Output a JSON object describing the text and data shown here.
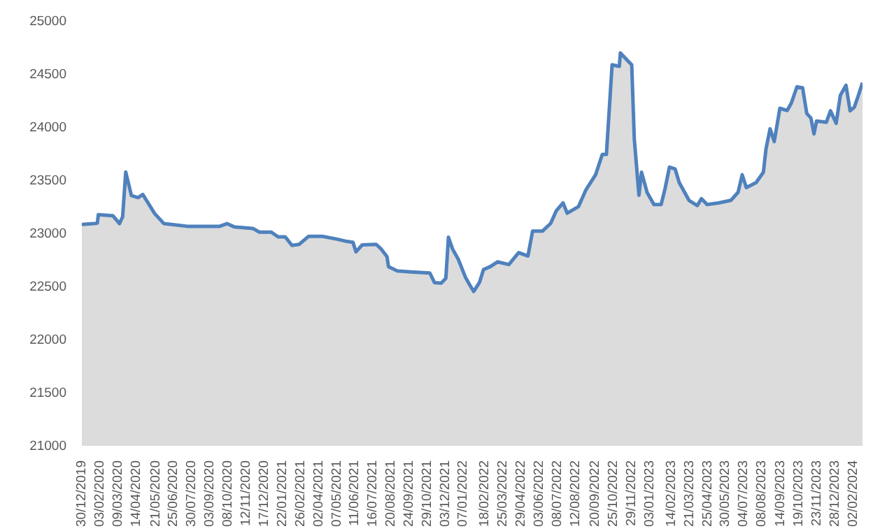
{
  "chart_data": {
    "type": "area",
    "ylim": [
      21000,
      25000
    ],
    "yticks": [
      21000,
      21500,
      22000,
      22500,
      23000,
      23500,
      24000,
      24500,
      25000
    ],
    "xlim": [
      "2019-12-30",
      "2024-02-19"
    ],
    "xticks": [
      {
        "value": "2019-12-30",
        "label": "30/12/2019"
      },
      {
        "value": "2020-02-03",
        "label": "03/02/2020"
      },
      {
        "value": "2020-03-09",
        "label": "09/03/2020"
      },
      {
        "value": "2020-04-14",
        "label": "14/04/2020"
      },
      {
        "value": "2020-05-21",
        "label": "21/05/2020"
      },
      {
        "value": "2020-06-25",
        "label": "25/06/2020"
      },
      {
        "value": "2020-07-30",
        "label": "30/07/2020"
      },
      {
        "value": "2020-09-03",
        "label": "03/09/2020"
      },
      {
        "value": "2020-10-08",
        "label": "08/10/2020"
      },
      {
        "value": "2020-11-12",
        "label": "12/11/2020"
      },
      {
        "value": "2020-12-17",
        "label": "17/12/2020"
      },
      {
        "value": "2021-01-22",
        "label": "22/01/2021"
      },
      {
        "value": "2021-02-26",
        "label": "26/02/2021"
      },
      {
        "value": "2021-04-02",
        "label": "02/04/2021"
      },
      {
        "value": "2021-05-07",
        "label": "07/05/2021"
      },
      {
        "value": "2021-06-11",
        "label": "11/06/2021"
      },
      {
        "value": "2021-07-16",
        "label": "16/07/2021"
      },
      {
        "value": "2021-08-20",
        "label": "20/08/2021"
      },
      {
        "value": "2021-09-24",
        "label": "24/09/2021"
      },
      {
        "value": "2021-10-29",
        "label": "29/10/2021"
      },
      {
        "value": "2021-12-03",
        "label": "03/12/2021"
      },
      {
        "value": "2022-01-07",
        "label": "07/01/2022"
      },
      {
        "value": "2022-02-18",
        "label": "18/02/2022"
      },
      {
        "value": "2022-03-25",
        "label": "25/03/2022"
      },
      {
        "value": "2022-04-29",
        "label": "29/04/2022"
      },
      {
        "value": "2022-06-03",
        "label": "03/06/2022"
      },
      {
        "value": "2022-07-08",
        "label": "08/07/2022"
      },
      {
        "value": "2022-08-12",
        "label": "12/08/2022"
      },
      {
        "value": "2022-09-20",
        "label": "20/09/2022"
      },
      {
        "value": "2022-10-25",
        "label": "25/10/2022"
      },
      {
        "value": "2022-11-29",
        "label": "29/11/2022"
      },
      {
        "value": "2023-01-03",
        "label": "03/01/2023"
      },
      {
        "value": "2023-02-14",
        "label": "14/02/2023"
      },
      {
        "value": "2023-03-21",
        "label": "21/03/2023"
      },
      {
        "value": "2023-04-25",
        "label": "25/04/2023"
      },
      {
        "value": "2023-05-30",
        "label": "30/05/2023"
      },
      {
        "value": "2023-07-04",
        "label": "04/07/2023"
      },
      {
        "value": "2023-08-08",
        "label": "08/08/2023"
      },
      {
        "value": "2023-09-14",
        "label": "14/09/2023"
      },
      {
        "value": "2023-10-19",
        "label": "19/10/2023"
      },
      {
        "value": "2023-11-23",
        "label": "23/11/2023"
      },
      {
        "value": "2023-12-28",
        "label": "28/12/2023"
      },
      {
        "value": "2024-02-02",
        "label": "02/02/2024"
      }
    ],
    "grid": false,
    "x": [
      "2019-12-30",
      "2020-01-22",
      "2020-01-29",
      "2020-01-31",
      "2020-02-28",
      "2020-03-12",
      "2020-03-18",
      "2020-03-24",
      "2020-04-04",
      "2020-04-17",
      "2020-04-26",
      "2020-05-19",
      "2020-06-06",
      "2020-07-21",
      "2020-09-22",
      "2020-10-06",
      "2020-10-20",
      "2020-11-25",
      "2020-12-08",
      "2020-12-31",
      "2021-01-13",
      "2021-01-27",
      "2021-02-09",
      "2021-02-23",
      "2021-03-13",
      "2021-04-09",
      "2021-05-06",
      "2021-05-24",
      "2021-06-07",
      "2021-06-13",
      "2021-06-25",
      "2021-07-22",
      "2021-07-31",
      "2021-08-12",
      "2021-08-15",
      "2021-09-01",
      "2021-09-28",
      "2021-11-03",
      "2021-11-12",
      "2021-11-25",
      "2021-12-04",
      "2021-12-09",
      "2021-12-17",
      "2021-12-28",
      "2022-01-11",
      "2022-01-19",
      "2022-01-27",
      "2022-02-07",
      "2022-02-15",
      "2022-02-28",
      "2022-03-14",
      "2022-04-05",
      "2022-04-24",
      "2022-05-12",
      "2022-05-21",
      "2022-06-09",
      "2022-06-25",
      "2022-07-06",
      "2022-07-19",
      "2022-07-27",
      "2022-08-18",
      "2022-09-01",
      "2022-09-20",
      "2022-10-03",
      "2022-10-11",
      "2022-10-22",
      "2022-11-05",
      "2022-11-07",
      "2022-11-21",
      "2022-11-29",
      "2022-12-04",
      "2022-12-13",
      "2022-12-18",
      "2022-12-29",
      "2023-01-11",
      "2023-01-25",
      "2023-02-02",
      "2023-02-10",
      "2023-02-21",
      "2023-03-01",
      "2023-03-20",
      "2023-04-05",
      "2023-04-13",
      "2023-04-24",
      "2023-05-16",
      "2023-06-09",
      "2023-06-23",
      "2023-07-01",
      "2023-07-09",
      "2023-07-28",
      "2023-08-11",
      "2023-08-16",
      "2023-08-24",
      "2023-09-01",
      "2023-09-12",
      "2023-09-26",
      "2023-10-04",
      "2023-10-15",
      "2023-10-26",
      "2023-11-03",
      "2023-11-11",
      "2023-11-17",
      "2023-11-22",
      "2023-12-11",
      "2023-12-19",
      "2023-12-30",
      "2024-01-07",
      "2024-01-18",
      "2024-01-26",
      "2024-02-03",
      "2024-02-11",
      "2024-02-19"
    ],
    "series": [
      {
        "color": "#4f81bd",
        "values": [
          23077,
          23085,
          23090,
          23170,
          23160,
          23085,
          23150,
          23570,
          23350,
          23330,
          23360,
          23180,
          23085,
          23060,
          23060,
          23085,
          23055,
          23040,
          23005,
          23005,
          22960,
          22960,
          22880,
          22890,
          22965,
          22965,
          22940,
          22920,
          22910,
          22820,
          22885,
          22890,
          22850,
          22775,
          22680,
          22640,
          22630,
          22620,
          22530,
          22525,
          22570,
          22957,
          22846,
          22750,
          22580,
          22510,
          22446,
          22530,
          22653,
          22680,
          22725,
          22700,
          22812,
          22780,
          23014,
          23014,
          23087,
          23207,
          23280,
          23183,
          23246,
          23400,
          23545,
          23737,
          23737,
          24581,
          24566,
          24692,
          24620,
          24580,
          23882,
          23352,
          23569,
          23376,
          23265,
          23265,
          23424,
          23617,
          23600,
          23472,
          23304,
          23255,
          23320,
          23265,
          23280,
          23304,
          23380,
          23545,
          23424,
          23472,
          23569,
          23786,
          23978,
          23858,
          24171,
          24150,
          24219,
          24373,
          24364,
          24123,
          24080,
          23930,
          24051,
          24040,
          24147,
          24030,
          24292,
          24388,
          24147,
          24180,
          24292,
          24412
        ]
      }
    ]
  }
}
